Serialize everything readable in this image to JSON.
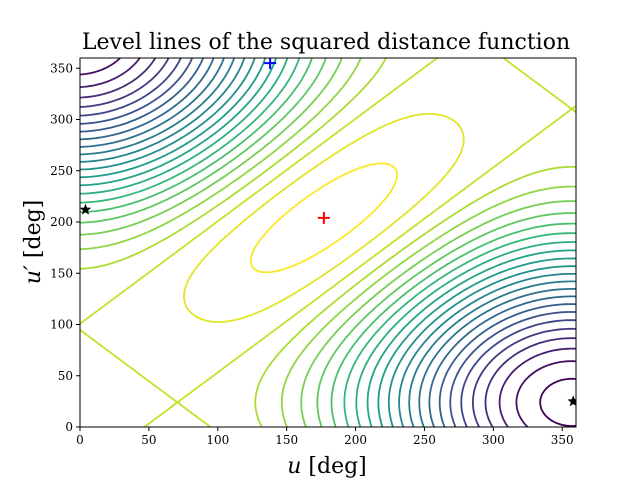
{
  "chart_data": {
    "type": "contour",
    "title": "Level lines of the squared distance function",
    "xlabel_var": "u",
    "xlabel_unit": "[deg]",
    "ylabel_var": "u′",
    "ylabel_unit": "[deg]",
    "xlim": [
      0,
      360
    ],
    "ylim": [
      0,
      360
    ],
    "xticks": [
      0,
      50,
      100,
      150,
      200,
      250,
      300,
      350
    ],
    "yticks": [
      0,
      50,
      100,
      150,
      200,
      250,
      300,
      350
    ],
    "grid": false,
    "colormap": "viridis",
    "levels": 25,
    "markers": [
      {
        "name": "minimum",
        "shape": "plus",
        "color": "#ff0000",
        "u": 177,
        "v": 204
      },
      {
        "name": "saddle",
        "shape": "plus",
        "color": "#0000ff",
        "u": 138,
        "v": 355
      },
      {
        "name": "left-star",
        "shape": "star",
        "color": "#000000",
        "u": 4,
        "v": 212
      },
      {
        "name": "right-star",
        "shape": "star",
        "color": "#000000",
        "u": 358,
        "v": 25
      }
    ]
  }
}
